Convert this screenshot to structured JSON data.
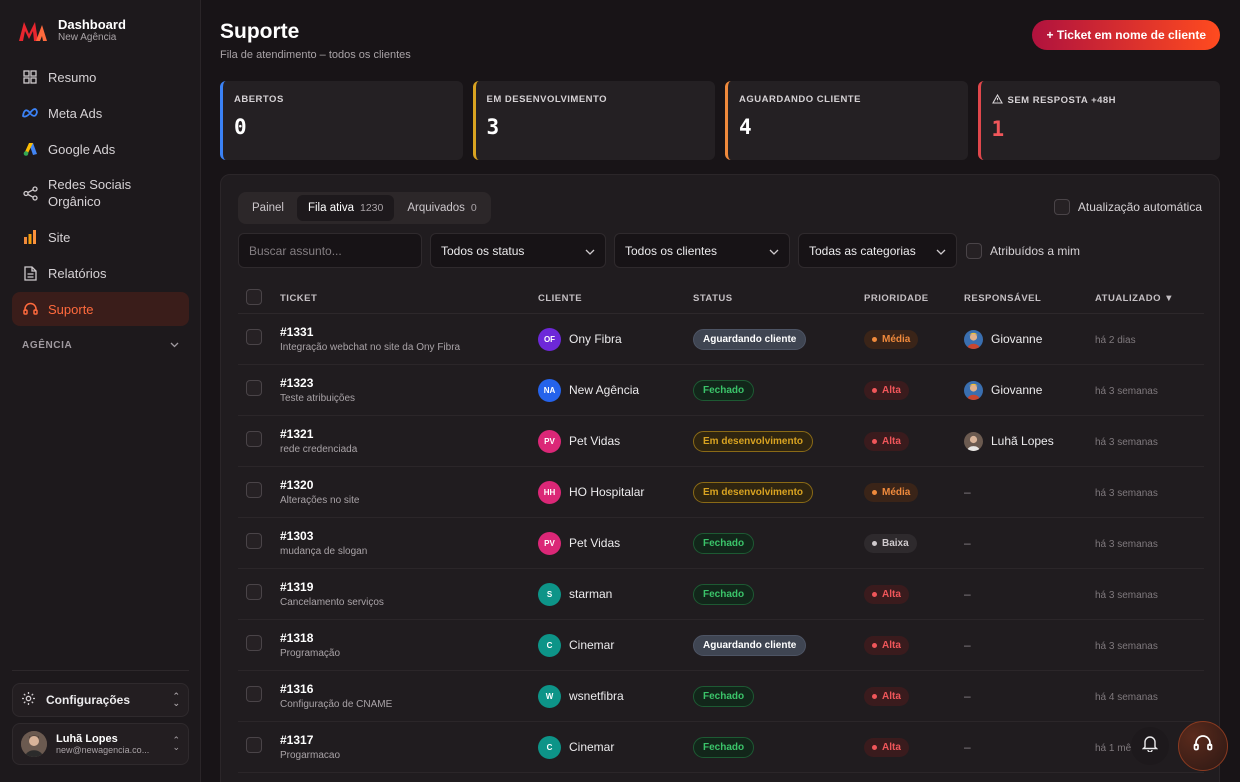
{
  "brand": {
    "title": "Dashboard",
    "subtitle": "New Agência",
    "accent": "#e8262f"
  },
  "sidebar": {
    "items": [
      {
        "label": "Resumo",
        "icon": "grid-icon"
      },
      {
        "label": "Meta Ads",
        "icon": "meta-icon"
      },
      {
        "label": "Google Ads",
        "icon": "google-ads-icon"
      },
      {
        "label": "Redes Sociais Orgânico",
        "icon": "share-icon"
      },
      {
        "label": "Site",
        "icon": "bar-chart-icon"
      },
      {
        "label": "Relatórios",
        "icon": "document-icon"
      },
      {
        "label": "Suporte",
        "icon": "headset-icon",
        "active": true
      }
    ],
    "section": "AGÊNCIA",
    "config_label": "Configurações",
    "user": {
      "name": "Luhã Lopes",
      "email": "new@newagencia.co..."
    }
  },
  "header": {
    "title": "Suporte",
    "subtitle": "Fila de atendimento – todos os clientes",
    "new_ticket": "+ Ticket em nome de cliente"
  },
  "stats": [
    {
      "label": "ABERTOS",
      "value": "0",
      "color": "#3b82f6",
      "value_color": "#ffffff"
    },
    {
      "label": "EM DESENVOLVIMENTO",
      "value": "3",
      "color": "#d9a321",
      "value_color": "#ffffff"
    },
    {
      "label": "AGUARDANDO CLIENTE",
      "value": "4",
      "color": "#f08a3c",
      "value_color": "#ffffff"
    },
    {
      "label": "SEM RESPOSTA +48H",
      "value": "1",
      "color": "#e0474c",
      "value_color": "#f0565a",
      "icon": "warning-icon"
    }
  ],
  "tabs": [
    {
      "label": "Painel",
      "count": ""
    },
    {
      "label": "Fila ativa",
      "count": "1230",
      "active": true
    },
    {
      "label": "Arquivados",
      "count": "0"
    }
  ],
  "auto_refresh_label": "Atualização automática",
  "filters": {
    "search_placeholder": "Buscar assunto...",
    "status": "Todos os status",
    "clients": "Todos os clientes",
    "categories": "Todas as categorias",
    "assigned_label": "Atribuídos a mim"
  },
  "table": {
    "headers": {
      "ticket": "TICKET",
      "client": "CLIENTE",
      "status": "STATUS",
      "priority": "PRIORIDADE",
      "responsible": "RESPONSÁVEL",
      "updated": "ATUALIZADO ▼"
    },
    "rows": [
      {
        "id": "#1331",
        "subject": "Integração webchat no site da Ony Fibra",
        "client": "Ony Fibra",
        "initials": "OF",
        "avatar_color": "#6d28d9",
        "status": "Aguardando cliente",
        "status_kind": "wait",
        "priority": "Média",
        "priority_kind": "med",
        "responsible": "Giovanne",
        "updated": "há 2 dias"
      },
      {
        "id": "#1323",
        "subject": "Teste atribuições",
        "client": "New Agência",
        "initials": "NA",
        "avatar_color": "#2563eb",
        "status": "Fechado",
        "status_kind": "closed",
        "priority": "Alta",
        "priority_kind": "high",
        "responsible": "Giovanne",
        "updated": "há 3 semanas"
      },
      {
        "id": "#1321",
        "subject": "rede credenciada",
        "client": "Pet Vidas",
        "initials": "PV",
        "avatar_color": "#db2777",
        "status": "Em desenvolvimento",
        "status_kind": "dev",
        "priority": "Alta",
        "priority_kind": "high",
        "responsible": "Luhã Lopes",
        "updated": "há 3 semanas"
      },
      {
        "id": "#1320",
        "subject": "Alterações no site",
        "client": "HO Hospitalar",
        "initials": "HH",
        "avatar_color": "#db2777",
        "status": "Em desenvolvimento",
        "status_kind": "dev",
        "priority": "Média",
        "priority_kind": "med",
        "responsible": "–",
        "updated": "há 3 semanas"
      },
      {
        "id": "#1303",
        "subject": "mudança de slogan",
        "client": "Pet Vidas",
        "initials": "PV",
        "avatar_color": "#db2777",
        "status": "Fechado",
        "status_kind": "closed",
        "priority": "Baixa",
        "priority_kind": "low",
        "responsible": "–",
        "updated": "há 3 semanas"
      },
      {
        "id": "#1319",
        "subject": "Cancelamento serviços",
        "client": "starman",
        "initials": "S",
        "avatar_color": "#0d9488",
        "status": "Fechado",
        "status_kind": "closed",
        "priority": "Alta",
        "priority_kind": "high",
        "responsible": "–",
        "updated": "há 3 semanas"
      },
      {
        "id": "#1318",
        "subject": "Programação",
        "client": "Cinemar",
        "initials": "C",
        "avatar_color": "#0d9488",
        "status": "Aguardando cliente",
        "status_kind": "wait",
        "priority": "Alta",
        "priority_kind": "high",
        "responsible": "–",
        "updated": "há 3 semanas"
      },
      {
        "id": "#1316",
        "subject": "Configuração de CNAME",
        "client": "wsnetfibra",
        "initials": "W",
        "avatar_color": "#0d9488",
        "status": "Fechado",
        "status_kind": "closed",
        "priority": "Alta",
        "priority_kind": "high",
        "responsible": "–",
        "updated": "há 4 semanas"
      },
      {
        "id": "#1317",
        "subject": "Progarmacao",
        "client": "Cinemar",
        "initials": "C",
        "avatar_color": "#0d9488",
        "status": "Fechado",
        "status_kind": "closed",
        "priority": "Alta",
        "priority_kind": "high",
        "responsible": "–",
        "updated": "há 1 mês"
      }
    ]
  }
}
